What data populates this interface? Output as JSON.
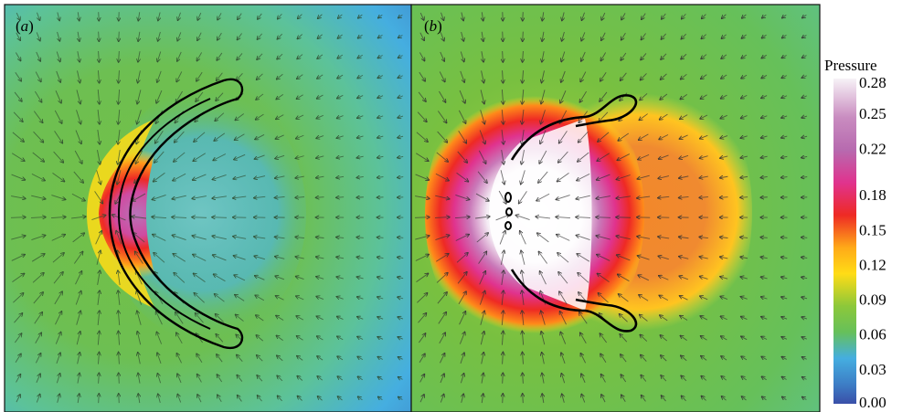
{
  "chart_data": {
    "type": "heatmap",
    "panels": [
      {
        "label": "a",
        "description_visible": false
      },
      {
        "label": "b",
        "description_visible": false
      }
    ],
    "colorbar": {
      "title": "Pressure",
      "ticks": [
        0.28,
        0.25,
        0.22,
        0.18,
        0.15,
        0.12,
        0.09,
        0.06,
        0.03,
        0.0
      ],
      "tick_labels": [
        "0.28",
        "0.25",
        "0.22",
        "0.18",
        "0.15",
        "0.12",
        "0.09",
        "0.06",
        "0.03",
        "0.00"
      ],
      "range": [
        0.0,
        0.28
      ],
      "colors": {
        "0.00": "#3a4fa8",
        "0.03": "#45aee0",
        "0.06": "#66c05a",
        "0.09": "#74c043",
        "0.12": "#c8d83a",
        "0.15": "#ffdc16",
        "0.18": "#ee2a24",
        "0.22": "#e0338e",
        "0.25": "#b76aaf",
        "0.28": "#f7f2f7"
      }
    },
    "overlays": [
      "velocity-vectors",
      "contour-outline"
    ]
  }
}
